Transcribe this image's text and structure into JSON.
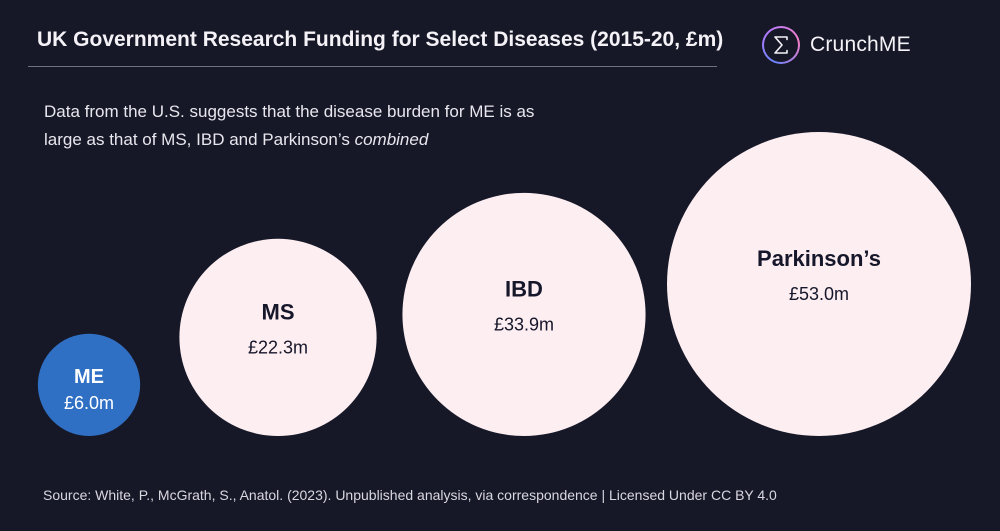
{
  "header": {
    "title": "UK Government Research Funding for Select Diseases (2015-20, £m)",
    "brand_name": "CrunchME",
    "brand_icon": "sigma-icon"
  },
  "subtitle": {
    "text_main": "Data from the U.S. suggests that the disease burden for ME is as large as that of MS, IBD and Parkinson’s ",
    "text_emphasis": "combined"
  },
  "footer": {
    "source": "Source: White, P., McGrath, S., Anatol. (2023). Unpublished analysis, via correspondence | Licensed Under CC BY 4.0"
  },
  "colors": {
    "background": "#161827",
    "highlight_bubble": "#2f6fc4",
    "other_bubble": "#fdeef2",
    "highlight_text": "#ffffff",
    "other_text": "#16172a"
  },
  "chart_data": {
    "type": "bubble",
    "unit": "£m",
    "categories": [
      "ME",
      "MS",
      "IBD",
      "Parkinson’s"
    ],
    "values": [
      6.0,
      22.3,
      33.9,
      53.0
    ],
    "value_labels": [
      "£6.0m",
      "£22.3m",
      "£33.9m",
      "£53.0m"
    ],
    "highlight": "ME"
  }
}
